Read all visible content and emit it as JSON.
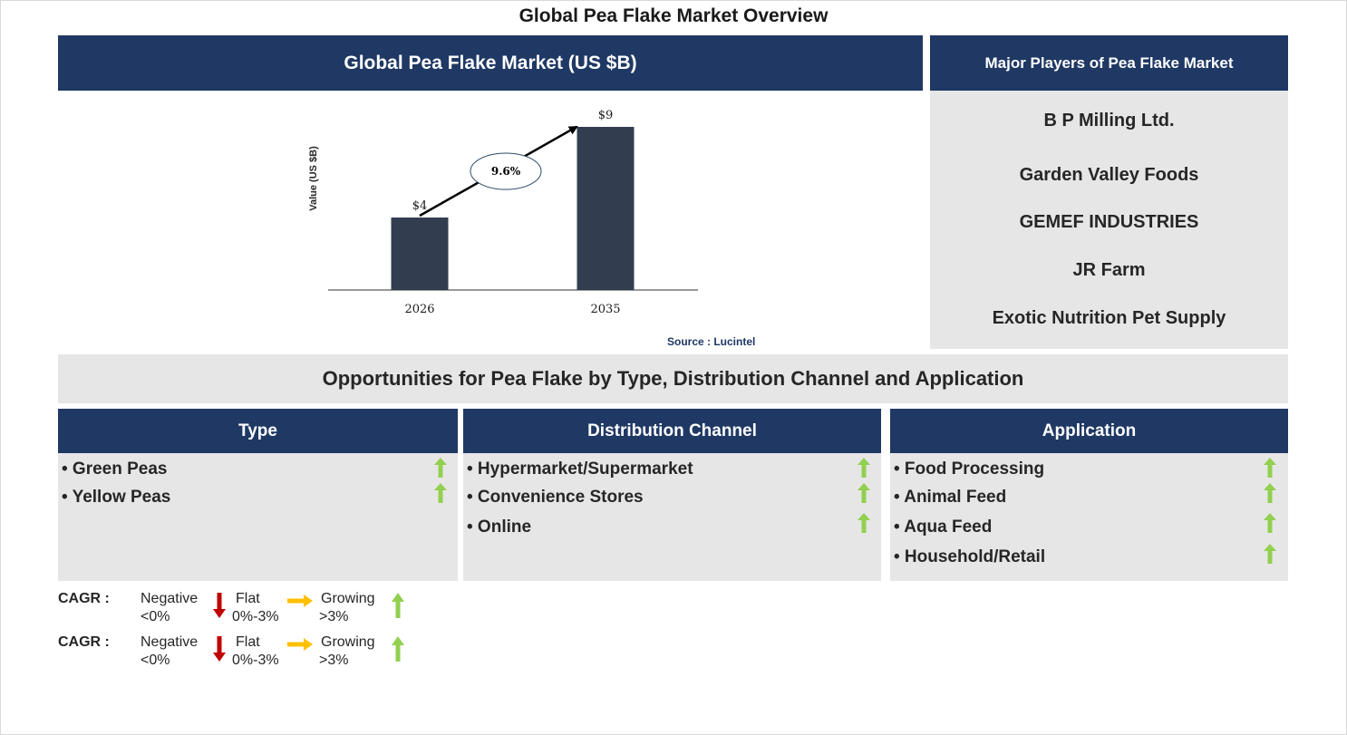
{
  "title": "Global Pea Flake Market Overview",
  "chart_panel": {
    "header": "Global Pea Flake Market (US $B)",
    "source": "Source : Lucintel"
  },
  "chart_data": {
    "type": "bar",
    "categories": [
      "2026",
      "2035"
    ],
    "values": [
      4,
      9
    ],
    "data_labels": [
      "$4",
      "$9"
    ],
    "ylabel": "Value (US $B)",
    "ylim": [
      0,
      9
    ],
    "cagr_label": "9.6%",
    "bar_color": "#323d4f",
    "grid": false
  },
  "players": {
    "header": "Major Players of Pea Flake Market",
    "items": [
      "B P Milling Ltd.",
      "Garden Valley Foods",
      "GEMEF INDUSTRIES",
      "JR Farm",
      "Exotic Nutrition Pet Supply"
    ]
  },
  "opportunities": {
    "title": "Opportunities for Pea Flake by Type, Distribution Channel and Application",
    "segments": [
      {
        "header": "Type",
        "items": [
          "• Green Peas",
          "• Yellow Peas"
        ]
      },
      {
        "header": "Distribution Channel",
        "items": [
          "• Hypermarket/Supermarket",
          "• Convenience Stores",
          "• Online"
        ]
      },
      {
        "header": "Application",
        "items": [
          "• Food Processing",
          "• Animal Feed",
          "• Aqua Feed",
          "• Household/Retail"
        ]
      }
    ]
  },
  "legend": {
    "rows": [
      {
        "cagr": "CAGR  :",
        "negative": "Negative",
        "negative_range": "<0%",
        "flat": "Flat",
        "flat_range": "0%-3%",
        "growing": "Growing",
        "growing_range": ">3%"
      },
      {
        "cagr": "CAGR  :",
        "negative": "Negative",
        "negative_range": "<0%",
        "flat": "Flat",
        "flat_range": "0%-3%",
        "growing": "Growing",
        "growing_range": ">3%"
      }
    ]
  },
  "colors": {
    "navy": "#1f3864",
    "panel_grey": "#e7e6e6",
    "up_green": "#92d050",
    "down_red": "#c00000",
    "flat_orange": "#ffc000"
  },
  "icons": {
    "growing": "green-up-arrow-icon",
    "negative": "red-down-arrow-icon",
    "flat": "orange-right-arrow-icon"
  }
}
